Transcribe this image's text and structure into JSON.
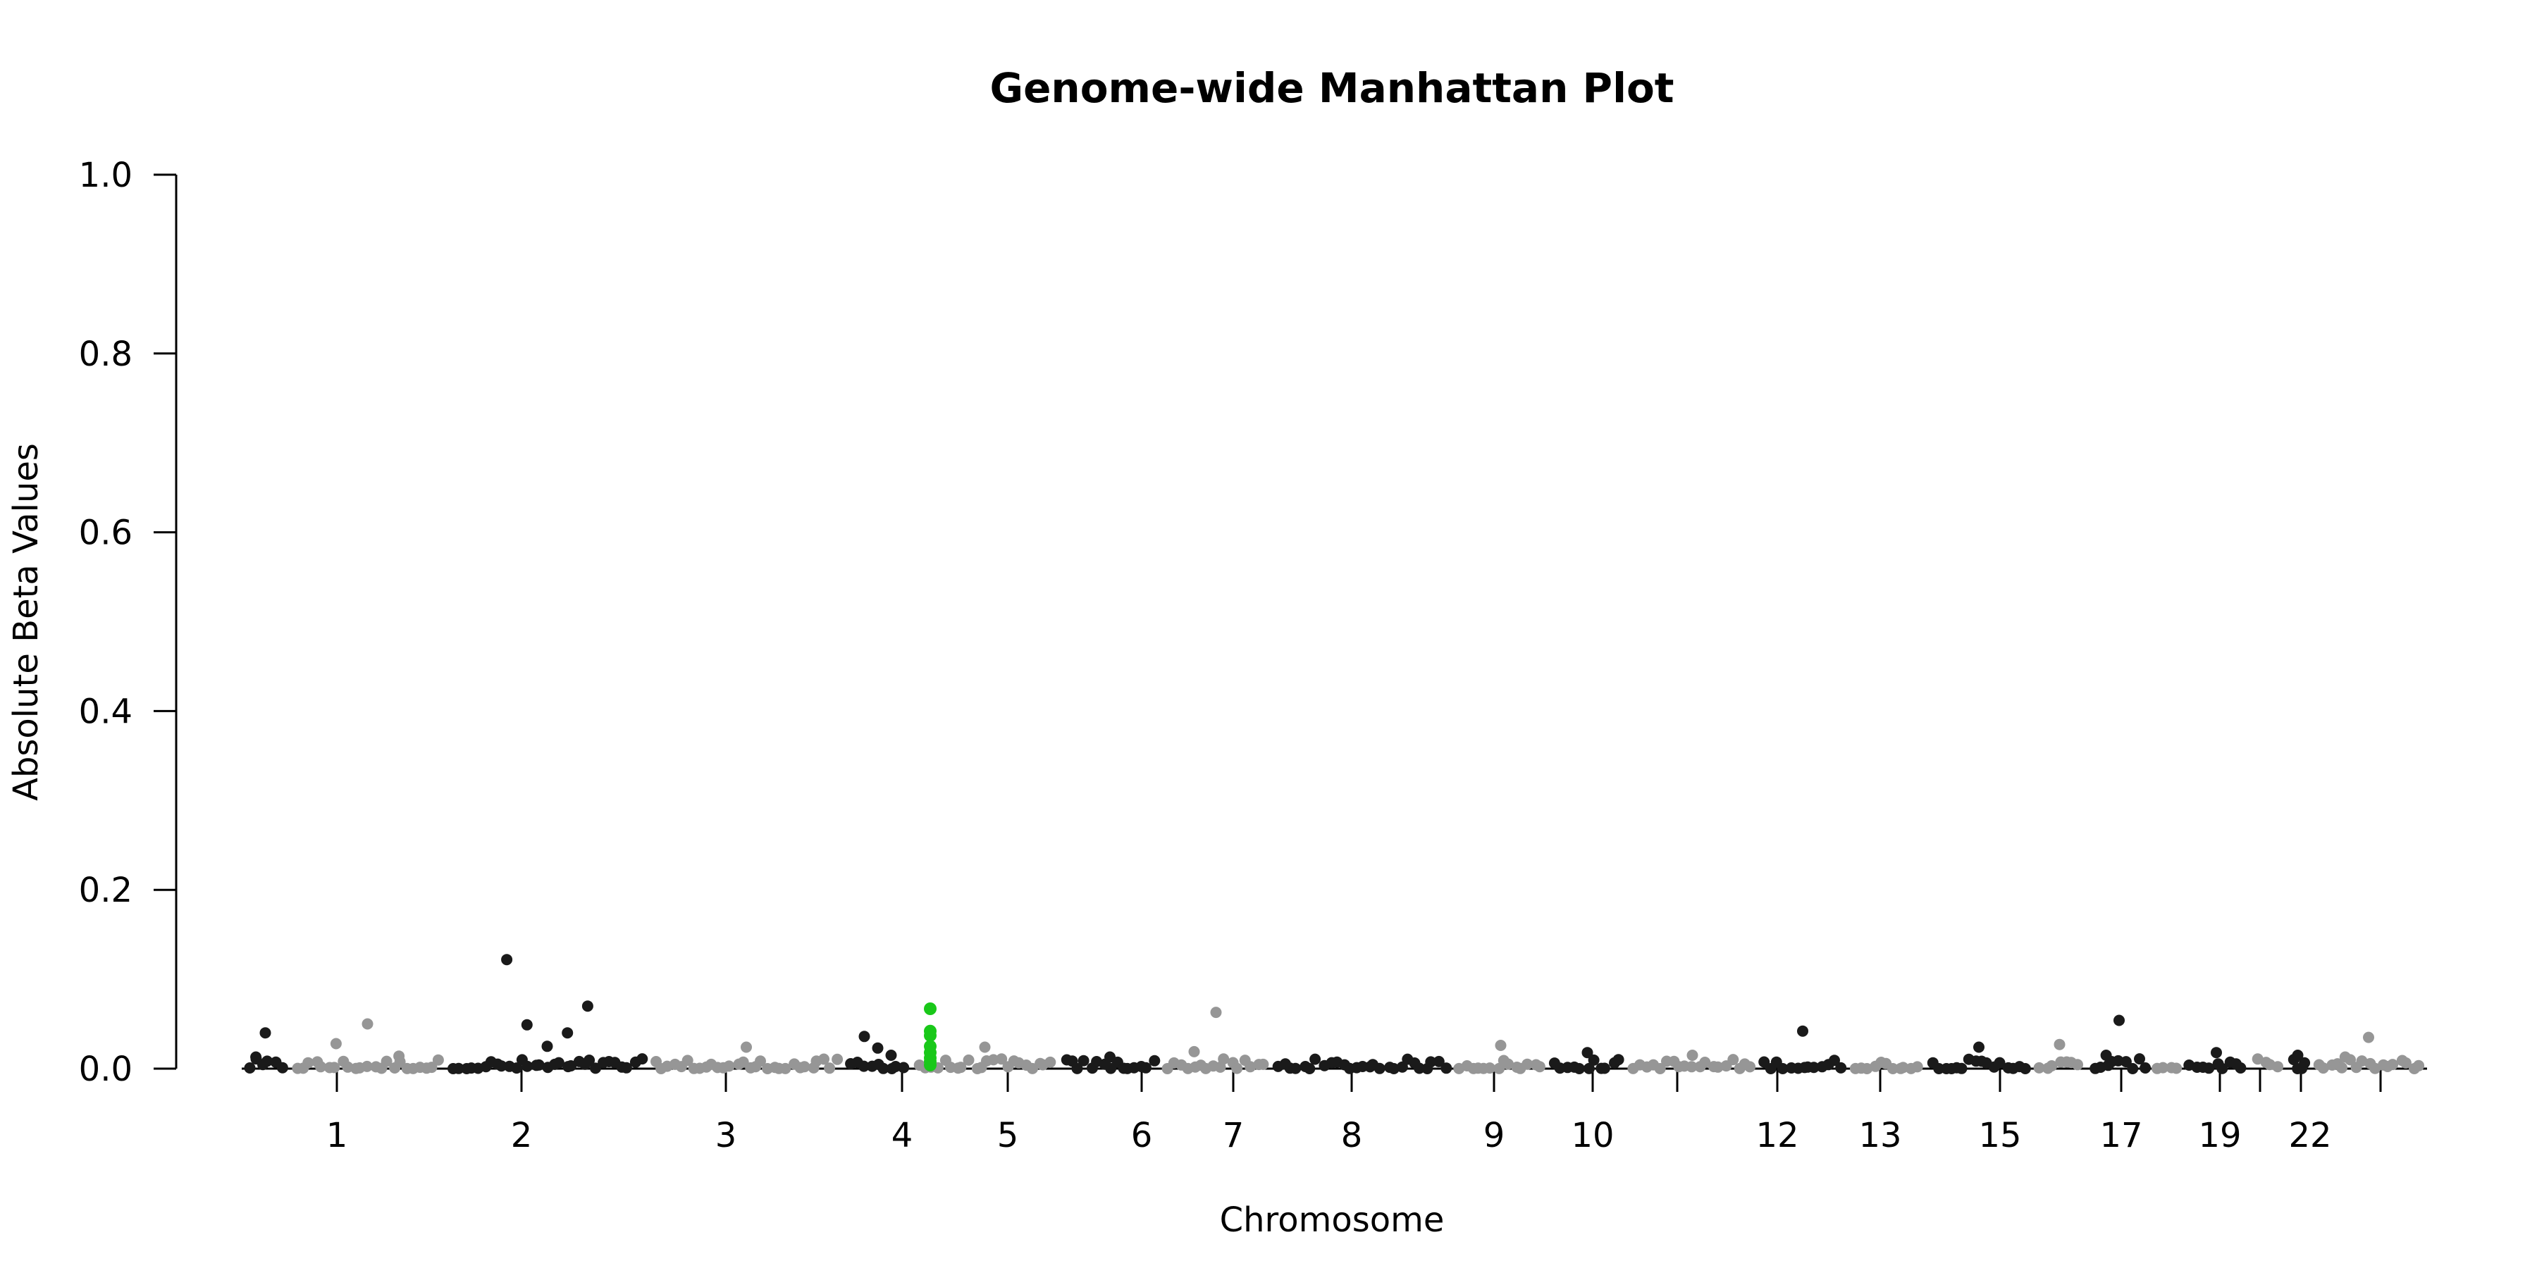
{
  "chart_data": {
    "type": "scatter",
    "title": "Genome-wide Manhattan Plot",
    "xlabel": "Chromosome",
    "ylabel": "Absolute Beta Values",
    "ylim": [
      0,
      1.0
    ],
    "y_ticks": [
      "0.0",
      "0.2",
      "0.4",
      "0.6",
      "0.8",
      "1.0"
    ],
    "x_tick_labels": [
      "1",
      "2",
      "3",
      "4",
      "5",
      "6",
      "7",
      "8",
      "9",
      "10",
      "12",
      "13",
      "15",
      "17",
      "19",
      "22"
    ],
    "grid": false,
    "colors": {
      "odd_chromosome": "#1a1a1a",
      "even_chromosome": "#969696",
      "highlight": "#19c819"
    },
    "chromosomes": [
      "1",
      "2",
      "3",
      "4",
      "5",
      "6",
      "7",
      "8",
      "9",
      "10",
      "11",
      "12",
      "13",
      "14",
      "15",
      "16",
      "17",
      "18",
      "19",
      "20",
      "21",
      "22"
    ],
    "highlight_points": [
      {
        "chromosome": "4",
        "values": [
          0.067,
          0.042,
          0.037,
          0.025,
          0.018,
          0.012,
          0.008,
          0.004
        ]
      }
    ],
    "peak_points": [
      {
        "chromosome": "1",
        "value": 0.04
      },
      {
        "chromosome": "1",
        "value": 0.013
      },
      {
        "chromosome": "2",
        "value": 0.05
      },
      {
        "chromosome": "2",
        "value": 0.028
      },
      {
        "chromosome": "2",
        "value": 0.014
      },
      {
        "chromosome": "3",
        "value": 0.025
      },
      {
        "chromosome": "3",
        "value": 0.122
      },
      {
        "chromosome": "3",
        "value": 0.07
      },
      {
        "chromosome": "3",
        "value": 0.049
      },
      {
        "chromosome": "3",
        "value": 0.04
      },
      {
        "chromosome": "4",
        "value": 0.024
      },
      {
        "chromosome": "5",
        "value": 0.023
      },
      {
        "chromosome": "5",
        "value": 0.036
      },
      {
        "chromosome": "5",
        "value": 0.015
      },
      {
        "chromosome": "6",
        "value": 0.024
      },
      {
        "chromosome": "7",
        "value": 0.013
      },
      {
        "chromosome": "8",
        "value": 0.063
      },
      {
        "chromosome": "8",
        "value": 0.019
      },
      {
        "chromosome": "10",
        "value": 0.026
      },
      {
        "chromosome": "11",
        "value": 0.018
      },
      {
        "chromosome": "12",
        "value": 0.015
      },
      {
        "chromosome": "13",
        "value": 0.042
      },
      {
        "chromosome": "15",
        "value": 0.024
      },
      {
        "chromosome": "16",
        "value": 0.027
      },
      {
        "chromosome": "17",
        "value": 0.054
      },
      {
        "chromosome": "17",
        "value": 0.015
      },
      {
        "chromosome": "19",
        "value": 0.018
      },
      {
        "chromosome": "21",
        "value": 0.015
      },
      {
        "chromosome": "22",
        "value": 0.035
      },
      {
        "chromosome": "22",
        "value": 0.013
      }
    ]
  }
}
